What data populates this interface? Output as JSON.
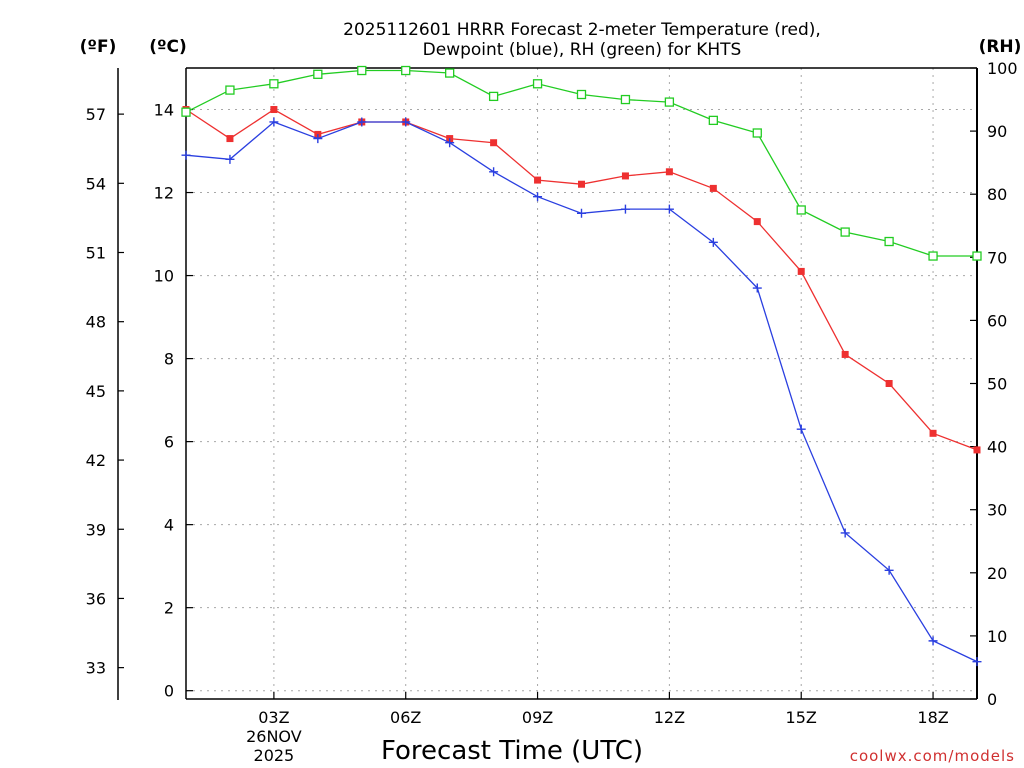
{
  "chart_data": {
    "type": "line",
    "title_lines": [
      "2025112601 HRRR Forecast 2-meter Temperature (red),",
      "Dewpoint (blue), RH (green) for KHTS"
    ],
    "xlabel": "Forecast Time (UTC)",
    "credit": "coolwx.com/models",
    "units": {
      "fahrenheit": "(ºF)",
      "celsius": "(ºC)",
      "rh": "(RH)"
    },
    "x_range": [
      1,
      19
    ],
    "x_ticks": [
      {
        "hour": 3,
        "label": "03Z",
        "sublabels": [
          "26NOV",
          "2025"
        ]
      },
      {
        "hour": 6,
        "label": "06Z",
        "sublabels": []
      },
      {
        "hour": 9,
        "label": "09Z",
        "sublabels": []
      },
      {
        "hour": 12,
        "label": "12Z",
        "sublabels": []
      },
      {
        "hour": 15,
        "label": "15Z",
        "sublabels": []
      },
      {
        "hour": 18,
        "label": "18Z",
        "sublabels": []
      }
    ],
    "celsius_axis": {
      "range": [
        -0.2,
        15
      ],
      "ticks": [
        0,
        2,
        4,
        6,
        8,
        10,
        12,
        14
      ],
      "labels": [
        "0",
        "2",
        "4",
        "6",
        "8",
        "10",
        "12",
        "14"
      ]
    },
    "fahrenheit_axis": {
      "ticks": [
        33,
        36,
        39,
        42,
        45,
        48,
        51,
        54,
        57
      ],
      "labels": [
        "33",
        "36",
        "39",
        "42",
        "45",
        "48",
        "51",
        "54",
        "57"
      ]
    },
    "rh_axis": {
      "range": [
        0,
        100
      ],
      "ticks": [
        0,
        10,
        20,
        30,
        40,
        50,
        60,
        70,
        80,
        90,
        100
      ],
      "labels": [
        "0",
        "10",
        "20",
        "30",
        "40",
        "50",
        "60",
        "70",
        "80",
        "90",
        "100"
      ]
    },
    "series": [
      {
        "name": "Temperature",
        "unit": "C",
        "color": "#ee3030",
        "marker": "filled-square",
        "x": [
          1,
          2,
          3,
          4,
          5,
          6,
          7,
          8,
          9,
          10,
          11,
          12,
          13,
          14,
          15,
          16,
          17,
          18,
          19
        ],
        "values": [
          14.0,
          13.3,
          14.0,
          13.4,
          13.7,
          13.7,
          13.3,
          13.2,
          12.3,
          12.2,
          12.4,
          12.5,
          12.1,
          11.3,
          10.1,
          8.1,
          7.4,
          6.2,
          5.8
        ]
      },
      {
        "name": "Dewpoint",
        "unit": "C",
        "color": "#2a3fe0",
        "marker": "plus",
        "x": [
          1,
          2,
          3,
          4,
          5,
          6,
          7,
          8,
          9,
          10,
          11,
          12,
          13,
          14,
          15,
          16,
          17,
          18,
          19
        ],
        "values": [
          12.9,
          12.8,
          13.7,
          13.3,
          13.7,
          13.7,
          13.2,
          12.5,
          11.9,
          11.5,
          11.6,
          11.6,
          10.8,
          9.7,
          6.3,
          3.8,
          2.9,
          1.2,
          0.7
        ]
      },
      {
        "name": "RH",
        "unit": "%",
        "color": "#22cc22",
        "marker": "open-square",
        "x": [
          1,
          2,
          3,
          4,
          5,
          6,
          7,
          8,
          9,
          10,
          11,
          12,
          13,
          14,
          15,
          16,
          17,
          18,
          19
        ],
        "values": [
          93,
          96.5,
          97.5,
          99,
          99.6,
          99.6,
          99.2,
          95.5,
          97.5,
          95.8,
          95,
          94.6,
          91.7,
          89.7,
          77.5,
          74,
          72.5,
          70.2,
          70.2
        ]
      }
    ]
  }
}
